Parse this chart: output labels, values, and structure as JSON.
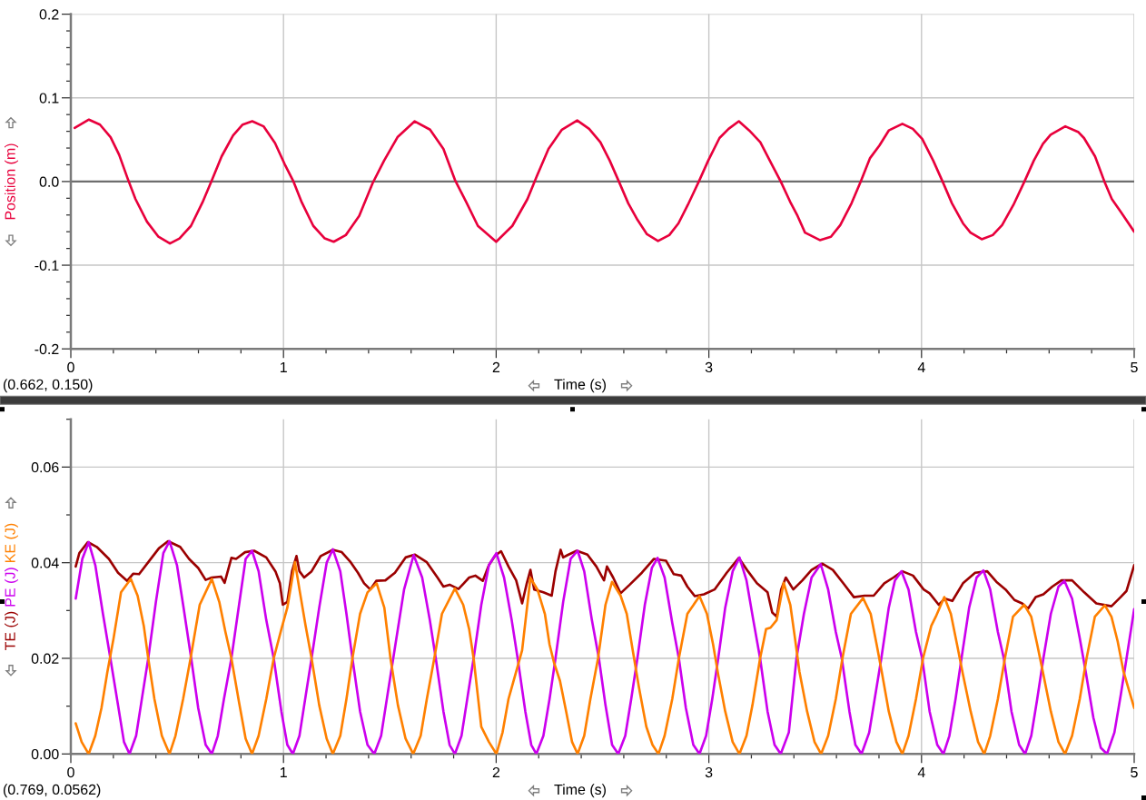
{
  "chart_data": [
    {
      "type": "line",
      "xlabel": "Time (s)",
      "annotations": [
        "(0.662, 0.150)"
      ],
      "xlim": [
        0,
        5
      ],
      "ylim": [
        -0.2,
        0.2
      ],
      "xticks": [
        0,
        {
          "value": 0.2,
          "label": null
        },
        {
          "value": 0.4,
          "label": null
        },
        {
          "value": 0.6,
          "label": null
        },
        {
          "value": 0.8,
          "label": null
        },
        1,
        {
          "value": 1.2,
          "label": null
        },
        {
          "value": 1.4,
          "label": null
        },
        {
          "value": 1.6,
          "label": null
        },
        {
          "value": 1.8,
          "label": null
        },
        2,
        {
          "value": 2.2,
          "label": null
        },
        {
          "value": 2.4,
          "label": null
        },
        {
          "value": 2.6,
          "label": null
        },
        {
          "value": 2.8,
          "label": null
        },
        3,
        {
          "value": 3.2,
          "label": null
        },
        {
          "value": 3.4,
          "label": null
        },
        {
          "value": 3.6,
          "label": null
        },
        {
          "value": 3.8,
          "label": null
        },
        4,
        {
          "value": 4.2,
          "label": null
        },
        {
          "value": 4.4,
          "label": null
        },
        {
          "value": 4.6,
          "label": null
        },
        {
          "value": 4.8,
          "label": null
        },
        5
      ],
      "yticks": [
        -0.2,
        {
          "value": -0.18,
          "label": null
        },
        {
          "value": -0.16,
          "label": null
        },
        {
          "value": -0.14,
          "label": null
        },
        {
          "value": -0.12,
          "label": null
        },
        -0.1,
        {
          "value": -0.08,
          "label": null
        },
        {
          "value": -0.06,
          "label": null
        },
        {
          "value": -0.04,
          "label": null
        },
        {
          "value": -0.02,
          "label": null
        },
        {
          "value": 0,
          "label": "0.0"
        },
        {
          "value": 0.02,
          "label": null
        },
        {
          "value": 0.04,
          "label": null
        },
        {
          "value": 0.06,
          "label": null
        },
        {
          "value": 0.08,
          "label": null
        },
        0.1,
        {
          "value": 0.12,
          "label": null
        },
        {
          "value": 0.14,
          "label": null
        },
        {
          "value": 0.16,
          "label": null
        },
        {
          "value": 0.18,
          "label": null
        },
        0.2
      ],
      "grid": true,
      "ref_lines": [
        {
          "axis": "y",
          "value": 0,
          "color": "#6e6e6e"
        }
      ],
      "series": [
        {
          "name": "Position (m)",
          "color": "#e8003c",
          "x": [
            0.018,
            0.085,
            0.137,
            0.187,
            0.227,
            0.268,
            0.304,
            0.358,
            0.412,
            0.466,
            0.511,
            0.565,
            0.619,
            0.664,
            0.709,
            0.763,
            0.808,
            0.853,
            0.906,
            0.96,
            1.005,
            1.047,
            1.086,
            1.14,
            1.194,
            1.236,
            1.293,
            1.356,
            1.419,
            1.473,
            1.536,
            1.617,
            1.689,
            1.752,
            1.806,
            1.86,
            1.914,
            2.0,
            2.076,
            2.147,
            2.192,
            2.246,
            2.309,
            2.381,
            2.437,
            2.49,
            2.534,
            2.577,
            2.621,
            2.665,
            2.709,
            2.761,
            2.814,
            2.857,
            2.901,
            2.953,
            2.997,
            3.05,
            3.093,
            3.141,
            3.19,
            3.242,
            3.295,
            3.338,
            3.382,
            3.417,
            3.452,
            3.522,
            3.574,
            3.618,
            3.671,
            3.714,
            3.758,
            3.802,
            3.846,
            3.91,
            3.959,
            4.003,
            4.055,
            4.099,
            4.143,
            4.195,
            4.23,
            4.283,
            4.335,
            4.379,
            4.432,
            4.484,
            4.528,
            4.571,
            4.607,
            4.676,
            4.738,
            4.764,
            4.816,
            4.86,
            4.895,
            4.939,
            5.0
          ],
          "values": [
            0.064,
            0.074,
            0.068,
            0.053,
            0.032,
            0.003,
            -0.021,
            -0.048,
            -0.066,
            -0.074,
            -0.068,
            -0.053,
            -0.025,
            0.002,
            0.03,
            0.055,
            0.068,
            0.072,
            0.066,
            0.046,
            0.021,
            0,
            -0.025,
            -0.053,
            -0.068,
            -0.072,
            -0.064,
            -0.041,
            -0.002,
            0.025,
            0.053,
            0.072,
            0.062,
            0.039,
            0.002,
            -0.025,
            -0.053,
            -0.072,
            -0.053,
            -0.021,
            0.007,
            0.039,
            0.062,
            0.073,
            0.063,
            0.047,
            0.025,
            0,
            -0.026,
            -0.046,
            -0.063,
            -0.071,
            -0.064,
            -0.05,
            -0.028,
            0,
            0.025,
            0.052,
            0.063,
            0.072,
            0.061,
            0.047,
            0.021,
            0,
            -0.024,
            -0.041,
            -0.061,
            -0.07,
            -0.066,
            -0.052,
            -0.026,
            0,
            0.028,
            0.043,
            0.061,
            0.069,
            0.063,
            0.051,
            0.025,
            0,
            -0.026,
            -0.05,
            -0.061,
            -0.069,
            -0.064,
            -0.052,
            -0.028,
            0,
            0.025,
            0.045,
            0.056,
            0.066,
            0.059,
            0.052,
            0.03,
            0,
            -0.021,
            -0.037,
            -0.06
          ]
        }
      ]
    },
    {
      "type": "line",
      "xlabel": "Time (s)",
      "annotations": [
        "(0.769, 0.0562)"
      ],
      "xlim": [
        0,
        5
      ],
      "ylim": [
        0,
        0.07
      ],
      "xticks": [
        0,
        {
          "value": 0.2,
          "label": null
        },
        {
          "value": 0.4,
          "label": null
        },
        {
          "value": 0.6,
          "label": null
        },
        {
          "value": 0.8,
          "label": null
        },
        1,
        {
          "value": 1.2,
          "label": null
        },
        {
          "value": 1.4,
          "label": null
        },
        {
          "value": 1.6,
          "label": null
        },
        {
          "value": 1.8,
          "label": null
        },
        2,
        {
          "value": 2.2,
          "label": null
        },
        {
          "value": 2.4,
          "label": null
        },
        {
          "value": 2.6,
          "label": null
        },
        {
          "value": 2.8,
          "label": null
        },
        3,
        {
          "value": 3.2,
          "label": null
        },
        {
          "value": 3.4,
          "label": null
        },
        {
          "value": 3.6,
          "label": null
        },
        {
          "value": 3.8,
          "label": null
        },
        4,
        {
          "value": 4.2,
          "label": null
        },
        {
          "value": 4.4,
          "label": null
        },
        {
          "value": 4.6,
          "label": null
        },
        {
          "value": 4.8,
          "label": null
        },
        5
      ],
      "yticks": [
        {
          "value": 0,
          "label": "0.00"
        },
        {
          "value": 0.01,
          "label": null
        },
        0.02,
        {
          "value": 0.03,
          "label": null
        },
        0.04,
        {
          "value": 0.05,
          "label": null
        },
        0.06,
        {
          "value": 0.07,
          "label": null
        }
      ],
      "grid": true,
      "series": [
        {
          "name": "TE (J)",
          "color": "#9b0000",
          "x": [
            0.023,
            0.04,
            0.08,
            0.122,
            0.179,
            0.222,
            0.265,
            0.293,
            0.321,
            0.364,
            0.414,
            0.457,
            0.514,
            0.556,
            0.599,
            0.634,
            0.663,
            0.706,
            0.723,
            0.755,
            0.777,
            0.819,
            0.862,
            0.919,
            0.962,
            0.983,
            0.997,
            1.018,
            1.04,
            1.061,
            1.075,
            1.097,
            1.132,
            1.175,
            1.232,
            1.274,
            1.316,
            1.35,
            1.379,
            1.408,
            1.436,
            1.479,
            1.524,
            1.574,
            1.617,
            1.674,
            1.724,
            1.752,
            1.781,
            1.823,
            1.873,
            1.902,
            1.937,
            1.966,
            1.994,
            2.023,
            2.058,
            2.094,
            2.122,
            2.144,
            2.161,
            2.179,
            2.222,
            2.261,
            2.279,
            2.303,
            2.315,
            2.336,
            2.379,
            2.429,
            2.471,
            2.507,
            2.521,
            2.55,
            2.585,
            2.628,
            2.685,
            2.742,
            2.799,
            2.835,
            2.87,
            2.899,
            2.934,
            2.977,
            3.027,
            3.084,
            3.141,
            3.184,
            3.226,
            3.276,
            3.298,
            3.319,
            3.34,
            3.362,
            3.397,
            3.44,
            3.483,
            3.533,
            3.583,
            3.632,
            3.682,
            3.732,
            3.775,
            3.825,
            3.868,
            3.91,
            3.96,
            4.01,
            4.038,
            4.081,
            4.11,
            4.145,
            4.195,
            4.252,
            4.309,
            4.352,
            4.395,
            4.437,
            4.473,
            4.501,
            4.537,
            4.573,
            4.615,
            4.658,
            4.708,
            4.765,
            4.822,
            4.893,
            4.936,
            4.964,
            5.0
          ],
          "values": [
            0.0392,
            0.042,
            0.0443,
            0.0433,
            0.0408,
            0.0379,
            0.0362,
            0.0377,
            0.0376,
            0.0401,
            0.043,
            0.0445,
            0.0433,
            0.0408,
            0.0389,
            0.0364,
            0.0369,
            0.0371,
            0.0358,
            0.041,
            0.0408,
            0.0422,
            0.0425,
            0.0411,
            0.0382,
            0.0357,
            0.0312,
            0.0318,
            0.0382,
            0.0414,
            0.0382,
            0.0369,
            0.0382,
            0.0414,
            0.0427,
            0.0422,
            0.0401,
            0.0379,
            0.0357,
            0.0344,
            0.0362,
            0.0363,
            0.0379,
            0.0411,
            0.0417,
            0.0401,
            0.0369,
            0.035,
            0.0354,
            0.0345,
            0.0369,
            0.0373,
            0.0362,
            0.0395,
            0.0414,
            0.0424,
            0.0392,
            0.0363,
            0.0315,
            0.0357,
            0.0385,
            0.0344,
            0.0338,
            0.0331,
            0.0382,
            0.0427,
            0.0411,
            0.0416,
            0.0425,
            0.0417,
            0.0392,
            0.0363,
            0.0392,
            0.0369,
            0.0336,
            0.0354,
            0.0379,
            0.0408,
            0.0404,
            0.0376,
            0.0373,
            0.035,
            0.033,
            0.0334,
            0.0344,
            0.0379,
            0.041,
            0.0382,
            0.0357,
            0.0338,
            0.0296,
            0.0287,
            0.0344,
            0.0369,
            0.0344,
            0.0363,
            0.0385,
            0.0398,
            0.0385,
            0.0357,
            0.0328,
            0.0331,
            0.0331,
            0.0357,
            0.0369,
            0.0382,
            0.0373,
            0.0344,
            0.0336,
            0.0312,
            0.0325,
            0.032,
            0.0357,
            0.0379,
            0.0382,
            0.036,
            0.0344,
            0.0322,
            0.0315,
            0.0304,
            0.0328,
            0.0334,
            0.035,
            0.0363,
            0.0363,
            0.0338,
            0.0315,
            0.0309,
            0.0328,
            0.0341,
            0.0395
          ]
        },
        {
          "name": "PE (J)",
          "color": "#cc00ee",
          "x": [
            0.023,
            0.054,
            0.084,
            0.115,
            0.151,
            0.186,
            0.222,
            0.25,
            0.276,
            0.307,
            0.336,
            0.364,
            0.4,
            0.435,
            0.464,
            0.499,
            0.528,
            0.566,
            0.599,
            0.634,
            0.663,
            0.691,
            0.72,
            0.755,
            0.791,
            0.822,
            0.852,
            0.883,
            0.919,
            0.954,
            0.99,
            1.018,
            1.044,
            1.075,
            1.104,
            1.132,
            1.168,
            1.203,
            1.232,
            1.267,
            1.296,
            1.324,
            1.36,
            1.395,
            1.427,
            1.459,
            1.488,
            1.516,
            1.567,
            1.612,
            1.652,
            1.688,
            1.716,
            1.752,
            1.781,
            1.806,
            1.837,
            1.866,
            1.894,
            1.93,
            1.966,
            2.001,
            2.037,
            2.073,
            2.101,
            2.137,
            2.165,
            2.189,
            2.222,
            2.251,
            2.279,
            2.315,
            2.35,
            2.383,
            2.414,
            2.45,
            2.483,
            2.514,
            2.545,
            2.574,
            2.607,
            2.635,
            2.664,
            2.699,
            2.732,
            2.759,
            2.792,
            2.828,
            2.859,
            2.892,
            2.927,
            2.956,
            2.987,
            3.016,
            3.044,
            3.077,
            3.112,
            3.144,
            3.177,
            3.209,
            3.241,
            3.276,
            3.309,
            3.338,
            3.376,
            3.412,
            3.447,
            3.483,
            3.526,
            3.561,
            3.597,
            3.625,
            3.661,
            3.689,
            3.718,
            3.754,
            3.782,
            3.811,
            3.846,
            3.875,
            3.906,
            3.939,
            3.974,
            4.003,
            4.038,
            4.074,
            4.103,
            4.131,
            4.16,
            4.188,
            4.224,
            4.259,
            4.291,
            4.323,
            4.359,
            4.387,
            4.423,
            4.459,
            4.487,
            4.516,
            4.544,
            4.573,
            4.608,
            4.644,
            4.672,
            4.708,
            4.744,
            4.772,
            4.808,
            4.843,
            4.872,
            4.907,
            4.936,
            4.964,
            5.0
          ],
          "values": [
            0.0325,
            0.0408,
            0.0443,
            0.0395,
            0.0293,
            0.02,
            0.0102,
            0.0025,
            0,
            0.0038,
            0.0121,
            0.02,
            0.0318,
            0.042,
            0.0445,
            0.0395,
            0.0312,
            0.02,
            0.0096,
            0.0019,
            0,
            0.0038,
            0.0115,
            0.02,
            0.0312,
            0.0408,
            0.0425,
            0.0382,
            0.028,
            0.02,
            0.0089,
            0.0019,
            0,
            0.0038,
            0.0121,
            0.02,
            0.0306,
            0.04,
            0.0428,
            0.0382,
            0.0293,
            0.02,
            0.0089,
            0.0019,
            0,
            0.0038,
            0.0121,
            0.02,
            0.0344,
            0.0416,
            0.0369,
            0.028,
            0.02,
            0.0089,
            0.0019,
            0,
            0.0038,
            0.0121,
            0.02,
            0.0312,
            0.0395,
            0.042,
            0.0369,
            0.028,
            0.02,
            0.0089,
            0.0019,
            0,
            0.0038,
            0.0115,
            0.02,
            0.0318,
            0.0408,
            0.0425,
            0.0382,
            0.028,
            0.02,
            0.0102,
            0.0019,
            0,
            0.0038,
            0.0115,
            0.02,
            0.0312,
            0.0389,
            0.041,
            0.0369,
            0.0274,
            0.02,
            0.0096,
            0.0019,
            0,
            0.0038,
            0.0115,
            0.02,
            0.0306,
            0.0382,
            0.0411,
            0.0363,
            0.028,
            0.02,
            0.0089,
            0.0019,
            0,
            0.0045,
            0.02,
            0.0293,
            0.0369,
            0.0397,
            0.0344,
            0.0255,
            0.02,
            0.0089,
            0.0019,
            0,
            0.0045,
            0.0121,
            0.02,
            0.0306,
            0.0363,
            0.0382,
            0.0344,
            0.0255,
            0.02,
            0.0089,
            0.0019,
            0,
            0.0038,
            0.0115,
            0.02,
            0.0306,
            0.0369,
            0.0384,
            0.0344,
            0.0255,
            0.02,
            0.0089,
            0.0019,
            0,
            0.0038,
            0.0115,
            0.02,
            0.0293,
            0.035,
            0.0362,
            0.0325,
            0.0242,
            0.0172,
            0.0076,
            0.0013,
            0,
            0.0045,
            0.0121,
            0.02,
            0.0303
          ]
        },
        {
          "name": "KE (J)",
          "color": "#ff8000",
          "x": [
            0.023,
            0.051,
            0.084,
            0.115,
            0.144,
            0.172,
            0.201,
            0.236,
            0.282,
            0.314,
            0.343,
            0.364,
            0.393,
            0.428,
            0.464,
            0.492,
            0.528,
            0.563,
            0.606,
            0.663,
            0.698,
            0.727,
            0.755,
            0.791,
            0.822,
            0.852,
            0.883,
            0.919,
            0.954,
            0.99,
            1.018,
            1.054,
            1.075,
            1.104,
            1.132,
            1.168,
            1.203,
            1.232,
            1.267,
            1.296,
            1.324,
            1.36,
            1.395,
            1.438,
            1.474,
            1.503,
            1.538,
            1.574,
            1.61,
            1.645,
            1.674,
            1.709,
            1.745,
            1.806,
            1.845,
            1.873,
            1.894,
            1.93,
            1.966,
            2.001,
            2.03,
            2.058,
            2.094,
            2.122,
            2.161,
            2.194,
            2.229,
            2.251,
            2.272,
            2.3,
            2.329,
            2.357,
            2.383,
            2.414,
            2.443,
            2.479,
            2.514,
            2.545,
            2.585,
            2.614,
            2.642,
            2.671,
            2.706,
            2.735,
            2.763,
            2.792,
            2.828,
            2.859,
            2.899,
            2.956,
            2.991,
            3.02,
            3.044,
            3.077,
            3.112,
            3.144,
            3.177,
            3.205,
            3.241,
            3.269,
            3.29,
            3.319,
            3.352,
            3.383,
            3.405,
            3.426,
            3.462,
            3.497,
            3.528,
            3.561,
            3.597,
            3.628,
            3.668,
            3.725,
            3.761,
            3.789,
            3.813,
            3.846,
            3.882,
            3.91,
            3.939,
            3.974,
            4.007,
            4.046,
            4.067,
            4.107,
            4.138,
            4.167,
            4.195,
            4.231,
            4.266,
            4.295,
            4.323,
            4.359,
            4.392,
            4.43,
            4.483,
            4.516,
            4.544,
            4.573,
            4.608,
            4.644,
            4.675,
            4.708,
            4.744,
            4.776,
            4.815,
            4.862,
            4.893,
            4.922,
            4.95,
            5.0
          ],
          "values": [
            0.0064,
            0.0025,
            0,
            0.0038,
            0.0096,
            0.0172,
            0.0242,
            0.0338,
            0.0366,
            0.0331,
            0.0268,
            0.02,
            0.0115,
            0.0038,
            0,
            0.0038,
            0.0115,
            0.02,
            0.0312,
            0.0366,
            0.0318,
            0.0255,
            0.02,
            0.0108,
            0.0032,
            0,
            0.0038,
            0.0115,
            0.02,
            0.0261,
            0.0306,
            0.0401,
            0.0344,
            0.0268,
            0.02,
            0.0102,
            0.0032,
            0,
            0.0038,
            0.0115,
            0.02,
            0.0293,
            0.0338,
            0.0357,
            0.0306,
            0.02,
            0.0102,
            0.0032,
            0,
            0.0038,
            0.0115,
            0.02,
            0.0293,
            0.0346,
            0.0312,
            0.0261,
            0.02,
            0.0057,
            0.0025,
            0,
            0.0045,
            0.0115,
            0.0172,
            0.0217,
            0.0368,
            0.0344,
            0.0293,
            0.0229,
            0.0191,
            0.0153,
            0.0089,
            0.0025,
            0,
            0.0038,
            0.0115,
            0.02,
            0.0312,
            0.036,
            0.0331,
            0.0293,
            0.0217,
            0.014,
            0.0057,
            0.0019,
            0,
            0.0038,
            0.0115,
            0.02,
            0.0293,
            0.033,
            0.0293,
            0.0229,
            0.0166,
            0.0089,
            0.0025,
            0,
            0.0038,
            0.0102,
            0.02,
            0.0261,
            0.0264,
            0.028,
            0.0358,
            0.0312,
            0.0242,
            0.0172,
            0.0089,
            0.0025,
            0,
            0.0038,
            0.0115,
            0.02,
            0.0293,
            0.0326,
            0.0293,
            0.0229,
            0.0172,
            0.0089,
            0.0025,
            0,
            0.0038,
            0.0115,
            0.02,
            0.0268,
            0.0287,
            0.0328,
            0.0293,
            0.0229,
            0.0166,
            0.0089,
            0.0025,
            0,
            0.0038,
            0.0115,
            0.02,
            0.0287,
            0.0312,
            0.0287,
            0.0229,
            0.0166,
            0.0089,
            0.0025,
            0,
            0.0038,
            0.0115,
            0.02,
            0.0287,
            0.0311,
            0.0287,
            0.0236,
            0.0172,
            0.0096
          ]
        }
      ]
    }
  ]
}
